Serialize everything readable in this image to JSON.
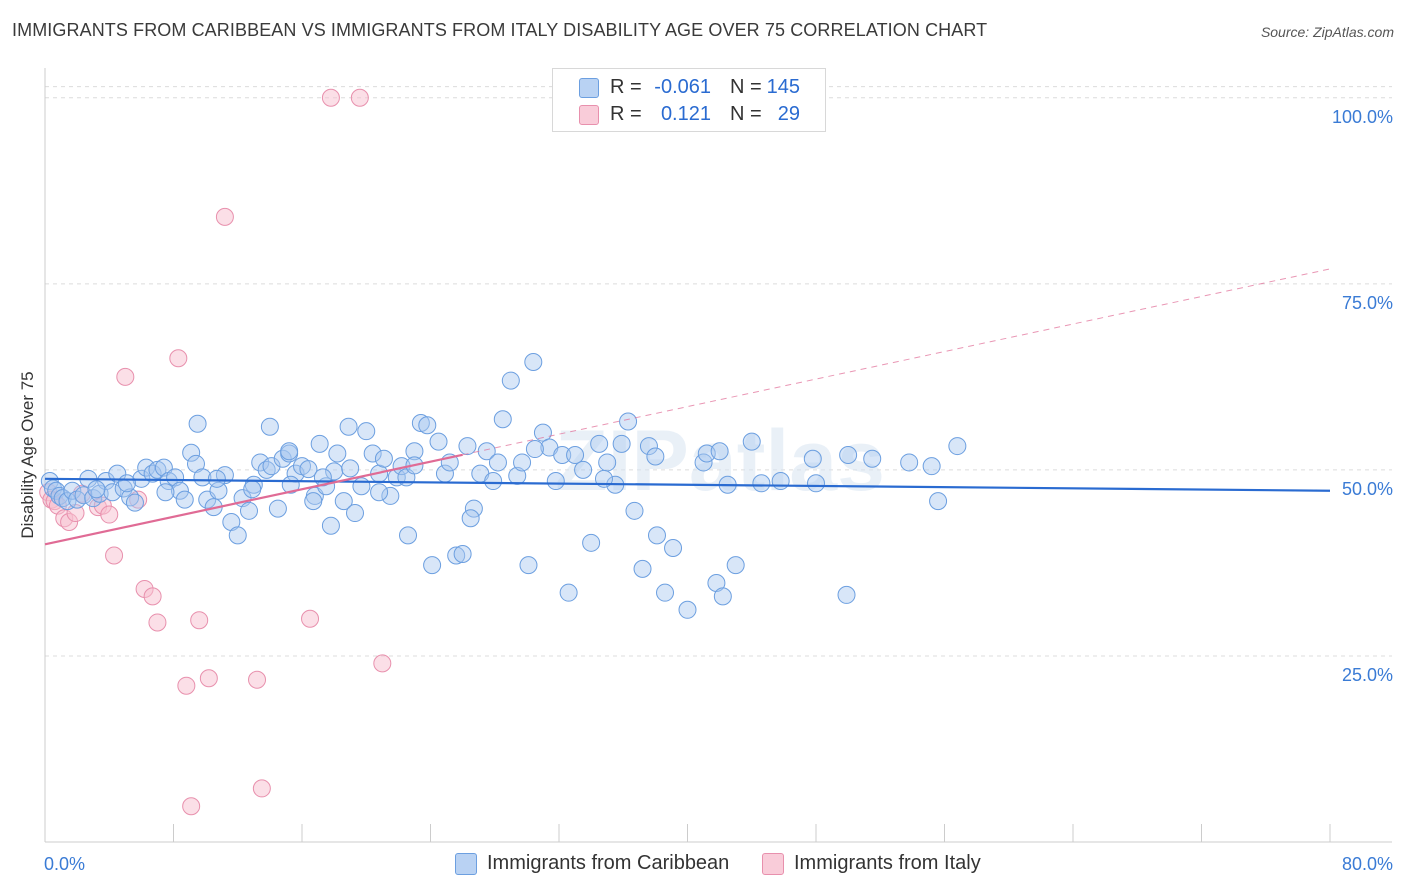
{
  "header": {
    "title": "IMMIGRANTS FROM CARIBBEAN VS IMMIGRANTS FROM ITALY DISABILITY AGE OVER 75 CORRELATION CHART",
    "source": "Source: ZipAtlas.com"
  },
  "legend": {
    "rows": [
      {
        "r_label": "R =",
        "r_value": "-0.061",
        "n_label": "N =",
        "n_value": "145"
      },
      {
        "r_label": "R =",
        "r_value": "0.121",
        "n_label": "N =",
        "n_value": "29"
      }
    ],
    "bottom": [
      "Immigrants from Caribbean",
      "Immigrants from Italy"
    ]
  },
  "watermark": "ZIPatlas",
  "colors": {
    "caribbean_fill": "#a9c8f0",
    "caribbean_stroke": "#6c9fe0",
    "caribbean_line": "#2a6bd1",
    "italy_fill": "#f7c0d0",
    "italy_stroke": "#e890ad",
    "italy_line": "#e06b95",
    "axis_text": "#3a7bd5"
  },
  "chart_data": {
    "type": "scatter",
    "title": "IMMIGRANTS FROM CARIBBEAN VS IMMIGRANTS FROM ITALY DISABILITY AGE OVER 75 CORRELATION CHART",
    "xlabel": "",
    "ylabel": "Disability Age Over 75",
    "xlim": [
      0,
      80
    ],
    "ylim": [
      0,
      104
    ],
    "x_tick_labels": [
      "0.0%",
      "80.0%"
    ],
    "y_ticks": [
      25,
      50,
      75,
      100
    ],
    "y_tick_labels": [
      "25.0%",
      "50.0%",
      "75.0%",
      "100.0%"
    ],
    "series": [
      {
        "name": "Immigrants from Caribbean",
        "R": -0.061,
        "N": 145,
        "trend": {
          "x": [
            0,
            80
          ],
          "y": [
            48.8,
            47.2
          ]
        },
        "points": [
          [
            0.3,
            48.5
          ],
          [
            0.5,
            47.5
          ],
          [
            0.7,
            47.2
          ],
          [
            0.9,
            46.5
          ],
          [
            1.1,
            46.2
          ],
          [
            1.4,
            45.8
          ],
          [
            1.7,
            47.2
          ],
          [
            2.0,
            46.0
          ],
          [
            2.4,
            46.6
          ],
          [
            2.7,
            48.8
          ],
          [
            3.0,
            46.2
          ],
          [
            3.4,
            46.8
          ],
          [
            3.8,
            48.5
          ],
          [
            4.2,
            47.0
          ],
          [
            4.5,
            49.5
          ],
          [
            4.9,
            47.5
          ],
          [
            5.3,
            46.3
          ],
          [
            5.6,
            45.6
          ],
          [
            6.0,
            48.8
          ],
          [
            6.3,
            50.3
          ],
          [
            6.7,
            49.5
          ],
          [
            7.0,
            50.0
          ],
          [
            7.4,
            50.3
          ],
          [
            7.7,
            48.5
          ],
          [
            8.1,
            49.0
          ],
          [
            8.4,
            47.2
          ],
          [
            8.7,
            46.0
          ],
          [
            9.1,
            52.3
          ],
          [
            9.4,
            50.8
          ],
          [
            9.8,
            49.0
          ],
          [
            10.1,
            46.0
          ],
          [
            10.5,
            45.0
          ],
          [
            10.8,
            47.2
          ],
          [
            11.2,
            49.3
          ],
          [
            11.6,
            43.0
          ],
          [
            12.0,
            41.2
          ],
          [
            12.3,
            46.2
          ],
          [
            12.7,
            44.5
          ],
          [
            13.0,
            48.0
          ],
          [
            13.4,
            51.0
          ],
          [
            13.8,
            50.0
          ],
          [
            14.1,
            50.5
          ],
          [
            14.5,
            44.8
          ],
          [
            14.8,
            51.5
          ],
          [
            15.2,
            52.2
          ],
          [
            15.6,
            49.5
          ],
          [
            16.0,
            50.5
          ],
          [
            16.4,
            50.1
          ],
          [
            16.8,
            46.5
          ],
          [
            17.1,
            53.5
          ],
          [
            17.5,
            47.8
          ],
          [
            17.8,
            42.5
          ],
          [
            18.2,
            52.2
          ],
          [
            18.6,
            45.8
          ],
          [
            18.9,
            55.8
          ],
          [
            19.3,
            44.2
          ],
          [
            19.7,
            47.8
          ],
          [
            20.0,
            55.2
          ],
          [
            20.4,
            52.2
          ],
          [
            20.8,
            49.5
          ],
          [
            21.1,
            51.5
          ],
          [
            21.5,
            46.5
          ],
          [
            21.9,
            49.0
          ],
          [
            22.2,
            50.5
          ],
          [
            22.6,
            41.2
          ],
          [
            23.0,
            52.5
          ],
          [
            23.4,
            56.3
          ],
          [
            23.8,
            56.0
          ],
          [
            24.1,
            37.2
          ],
          [
            24.5,
            53.8
          ],
          [
            24.9,
            49.5
          ],
          [
            25.2,
            51.0
          ],
          [
            25.6,
            38.5
          ],
          [
            26.0,
            38.7
          ],
          [
            26.3,
            53.2
          ],
          [
            26.7,
            44.8
          ],
          [
            27.1,
            49.5
          ],
          [
            27.5,
            52.5
          ],
          [
            27.9,
            48.5
          ],
          [
            28.2,
            51.0
          ],
          [
            28.5,
            56.8
          ],
          [
            29.0,
            62.0
          ],
          [
            29.4,
            49.2
          ],
          [
            29.7,
            51.0
          ],
          [
            30.1,
            37.2
          ],
          [
            30.4,
            64.5
          ],
          [
            31.0,
            55.0
          ],
          [
            31.4,
            53.0
          ],
          [
            31.8,
            48.5
          ],
          [
            32.2,
            52.0
          ],
          [
            32.6,
            33.5
          ],
          [
            33.0,
            52.0
          ],
          [
            33.5,
            50.0
          ],
          [
            34.0,
            40.2
          ],
          [
            34.5,
            53.5
          ],
          [
            35.0,
            51.0
          ],
          [
            35.5,
            48.0
          ],
          [
            35.9,
            53.5
          ],
          [
            36.3,
            56.5
          ],
          [
            36.7,
            44.5
          ],
          [
            37.2,
            36.7
          ],
          [
            37.6,
            53.2
          ],
          [
            38.1,
            41.2
          ],
          [
            38.6,
            33.5
          ],
          [
            39.1,
            39.5
          ],
          [
            40.0,
            31.2
          ],
          [
            41.0,
            51.0
          ],
          [
            41.2,
            52.2
          ],
          [
            41.8,
            34.8
          ],
          [
            42.2,
            33.0
          ],
          [
            42.5,
            48.0
          ],
          [
            43.0,
            37.2
          ],
          [
            44.0,
            53.8
          ],
          [
            44.6,
            48.2
          ],
          [
            45.8,
            48.5
          ],
          [
            47.8,
            51.5
          ],
          [
            48.0,
            48.2
          ],
          [
            49.9,
            33.2
          ],
          [
            50.0,
            52.0
          ],
          [
            51.5,
            51.5
          ],
          [
            53.8,
            51.0
          ],
          [
            55.2,
            50.5
          ],
          [
            55.6,
            45.8
          ],
          [
            56.8,
            53.2
          ],
          [
            9.5,
            56.2
          ],
          [
            14.0,
            55.8
          ],
          [
            15.2,
            52.5
          ],
          [
            16.7,
            45.8
          ],
          [
            18.0,
            49.8
          ],
          [
            22.5,
            49.0
          ],
          [
            26.5,
            43.5
          ],
          [
            30.5,
            52.8
          ],
          [
            34.8,
            48.8
          ],
          [
            38.0,
            51.8
          ],
          [
            42.0,
            52.5
          ],
          [
            3.2,
            47.4
          ],
          [
            5.1,
            48.2
          ],
          [
            7.5,
            47.0
          ],
          [
            10.7,
            48.8
          ],
          [
            12.9,
            47.4
          ],
          [
            15.3,
            48.0
          ],
          [
            17.3,
            49.0
          ],
          [
            19.0,
            50.2
          ],
          [
            20.8,
            47.0
          ],
          [
            23.0,
            50.6
          ]
        ]
      },
      {
        "name": "Immigrants from Italy",
        "R": 0.121,
        "N": 29,
        "trend": {
          "x": [
            0,
            80
          ],
          "y": [
            40.0,
            77.0
          ]
        },
        "trend_solid_end_x": 26.0,
        "points": [
          [
            0.2,
            47.0
          ],
          [
            0.4,
            46.0
          ],
          [
            0.6,
            45.8
          ],
          [
            0.8,
            45.2
          ],
          [
            1.2,
            43.5
          ],
          [
            1.5,
            43.0
          ],
          [
            1.9,
            44.2
          ],
          [
            2.3,
            46.8
          ],
          [
            3.3,
            45.0
          ],
          [
            3.6,
            45.2
          ],
          [
            4.0,
            44.0
          ],
          [
            4.3,
            38.5
          ],
          [
            5.0,
            62.5
          ],
          [
            5.8,
            46.0
          ],
          [
            6.2,
            34.0
          ],
          [
            6.7,
            33.0
          ],
          [
            7.0,
            29.5
          ],
          [
            8.3,
            65.0
          ],
          [
            8.8,
            21.0
          ],
          [
            9.1,
            4.8
          ],
          [
            9.6,
            29.8
          ],
          [
            10.2,
            22.0
          ],
          [
            11.2,
            84.0
          ],
          [
            13.2,
            21.8
          ],
          [
            13.5,
            7.2
          ],
          [
            16.5,
            30.0
          ],
          [
            17.8,
            100.0
          ],
          [
            19.6,
            100.0
          ],
          [
            21.0,
            24.0
          ]
        ]
      }
    ]
  }
}
